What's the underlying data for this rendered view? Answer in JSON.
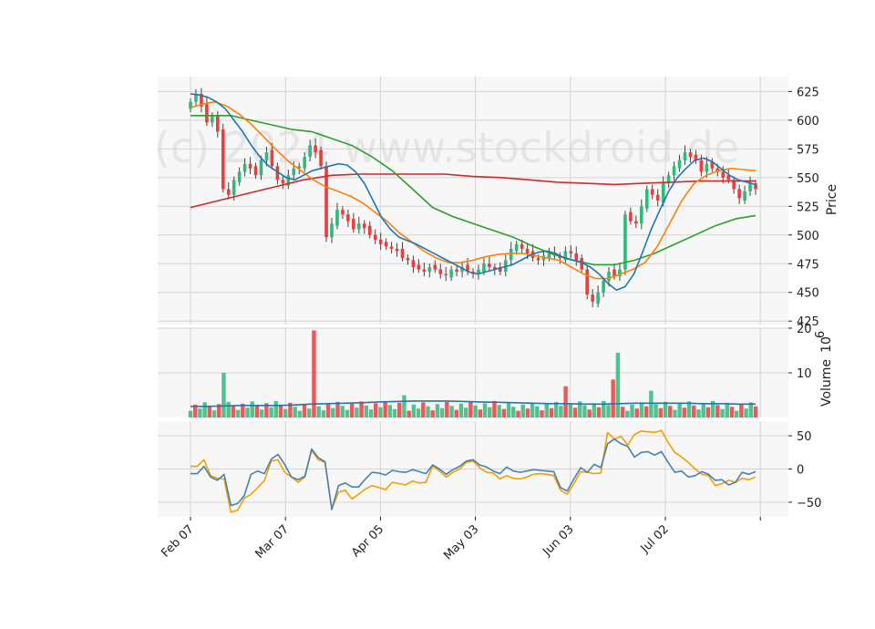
{
  "watermark": "(c) 2024 www.stockdroid.de",
  "colors": {
    "up": "#2fba7c",
    "down": "#ee3b3b",
    "wick": "#444444",
    "panel_bg": "#f7f7f7",
    "grid": "#d4d4d4",
    "ma_short": "#1f77b4",
    "ma_mid": "#ff7f0e",
    "ma_long": "#2ca02c",
    "ma_200": "#d62728",
    "vol_ma": "#1f77b4",
    "osc_1": "#4682b4",
    "osc_2": "#f5a000"
  },
  "chart_data": {
    "type": "line",
    "title": "",
    "x_tick_labels": [
      "Feb 07",
      "Mar 07",
      "Apr 05",
      "May 03",
      "Jun 03",
      "Jul 02"
    ],
    "x_tick_index": [
      0,
      20,
      40,
      60,
      80,
      100
    ],
    "n_bars": 120,
    "price_panel": {
      "ylabel": "Price",
      "ylim": [
        422,
        638
      ],
      "yticks": [
        425,
        450,
        475,
        500,
        525,
        550,
        575,
        600,
        625
      ],
      "candles_close": [
        616,
        623,
        612,
        598,
        604,
        590,
        540,
        535,
        548,
        555,
        562,
        558,
        552,
        565,
        572,
        560,
        548,
        545,
        552,
        558,
        560,
        568,
        578,
        572,
        560,
        498,
        510,
        522,
        518,
        512,
        505,
        510,
        506,
        500,
        496,
        492,
        490,
        488,
        486,
        480,
        478,
        472,
        470,
        468,
        472,
        470,
        466,
        465,
        470,
        468,
        472,
        468,
        466,
        470,
        475,
        472,
        470,
        468,
        478,
        488,
        492,
        488,
        484,
        480,
        478,
        482,
        484,
        482,
        480,
        486,
        484,
        478,
        470,
        448,
        442,
        450,
        460,
        468,
        464,
        470,
        518,
        512,
        510,
        525,
        540,
        535,
        530,
        545,
        552,
        560,
        565,
        572,
        568,
        565,
        555,
        562,
        558,
        555,
        550,
        548,
        540,
        532,
        538,
        545,
        540
      ],
      "ma_short": [
        623,
        622,
        620,
        616,
        610,
        600,
        590,
        578,
        568,
        560,
        555,
        550,
        548,
        552,
        556,
        558,
        560,
        562,
        561,
        555,
        545,
        530,
        515,
        505,
        498,
        495,
        492,
        488,
        484,
        480,
        476,
        472,
        468,
        466,
        468,
        470,
        472,
        474,
        478,
        482,
        485,
        486,
        484,
        480,
        478,
        476,
        472,
        466,
        458,
        452,
        455,
        466,
        485,
        505,
        522,
        538,
        550,
        558,
        565,
        567,
        564,
        558,
        552,
        548,
        546,
        544
      ],
      "ma_mid": [
        611,
        614,
        616,
        612,
        605,
        596,
        585,
        574,
        564,
        556,
        548,
        542,
        538,
        534,
        528,
        520,
        512,
        502,
        494,
        486,
        480,
        476,
        476,
        478,
        481,
        483,
        484,
        484,
        482,
        480,
        478,
        472,
        466,
        462,
        462,
        466,
        470,
        476,
        490,
        510,
        530,
        545,
        552,
        556,
        558,
        557,
        556
      ],
      "ma_long": [
        604,
        604,
        604,
        600,
        596,
        592,
        590,
        584,
        578,
        568,
        556,
        540,
        524,
        516,
        510,
        504,
        498,
        490,
        483,
        478,
        474,
        474,
        478,
        484,
        492,
        500,
        508,
        514,
        517
      ],
      "ma_200": [
        524,
        530,
        536,
        542,
        548,
        552,
        553,
        553,
        553,
        553,
        551,
        550,
        548,
        546,
        545,
        544,
        545,
        546,
        547,
        547,
        547
      ]
    },
    "volume_panel": {
      "ylabel": "Volume  10^6",
      "exponent_label": "6",
      "ylim": [
        0,
        20
      ],
      "yticks": [
        10,
        20
      ],
      "ma_label": "",
      "volume_ma": [
        2.5,
        2.5,
        2.6,
        2.7,
        2.7,
        2.7,
        2.8,
        3.0,
        3.1,
        3.2,
        3.3,
        3.5,
        3.6,
        3.7,
        3.7,
        3.7,
        3.6,
        3.5,
        3.4,
        3.3,
        3.2,
        3.1,
        3.1,
        3.0,
        3.0,
        3.1,
        3.2,
        3.2,
        3.2,
        3.2,
        3.1,
        3.1,
        3.0,
        3.0
      ],
      "spikes": [
        {
          "i": 7,
          "v": 10
        },
        {
          "i": 26,
          "v": 19.5
        },
        {
          "i": 45,
          "v": 5
        },
        {
          "i": 79,
          "v": 7
        },
        {
          "i": 89,
          "v": 8.5
        },
        {
          "i": 90,
          "v": 14.5
        },
        {
          "i": 97,
          "v": 6
        }
      ]
    },
    "osc_panel": {
      "ylim": [
        -72,
        72
      ],
      "yticks": [
        -50,
        0,
        50
      ],
      "series_1": [
        -7,
        -7,
        4,
        -12,
        -17,
        -8,
        -55,
        -52,
        -40,
        -8,
        -3,
        -7,
        15,
        22,
        7,
        -12,
        -16,
        -11,
        30,
        17,
        11,
        -61,
        -25,
        -21,
        -27,
        -27,
        -15,
        -5,
        -6,
        -9,
        -2,
        -4,
        -5,
        -1,
        -4,
        -7,
        6,
        0,
        -8,
        -1,
        4,
        12,
        14,
        6,
        3,
        -3,
        -7,
        3,
        -3,
        -5,
        -3,
        -1,
        -2,
        -3,
        -4,
        -28,
        -33,
        -15,
        2,
        -5,
        7,
        2,
        38,
        45,
        38,
        34,
        18,
        25,
        26,
        21,
        26,
        10,
        -5,
        -3,
        -12,
        -10,
        -4,
        -8,
        -17,
        -16,
        -24,
        -20,
        -5,
        -8,
        -4
      ],
      "series_2": [
        4,
        4,
        14,
        -10,
        -14,
        -15,
        -65,
        -62,
        -44,
        -38,
        -28,
        -17,
        12,
        14,
        -5,
        -12,
        -20,
        -12,
        28,
        14,
        10,
        -60,
        -35,
        -32,
        -45,
        -38,
        -30,
        -25,
        -28,
        -31,
        -20,
        -22,
        -24,
        -18,
        -21,
        -20,
        5,
        -3,
        -12,
        -5,
        0,
        10,
        12,
        2,
        -5,
        -6,
        -15,
        -10,
        -14,
        -15,
        -12,
        -8,
        -7,
        -8,
        -10,
        -32,
        -38,
        -22,
        -4,
        -5,
        -7,
        -6,
        55,
        45,
        49,
        36,
        52,
        57,
        56,
        55,
        58,
        40,
        25,
        18,
        10,
        0,
        -8,
        -10,
        -25,
        -22,
        -17,
        -20,
        -14,
        -16,
        -12
      ]
    }
  }
}
